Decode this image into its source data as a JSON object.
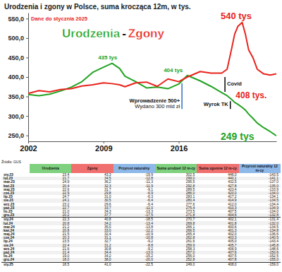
{
  "chart_data": {
    "type": "line",
    "title": "Urodzenia i zgony w Polsce, suma krocząca 12m, w tys.",
    "subtitle": "Dane do stycznia 2025",
    "x": [
      2002,
      2003,
      2004,
      2005,
      2006,
      2007,
      2008,
      2009,
      2009.8,
      2010.5,
      2011,
      2012,
      2013,
      2014,
      2015,
      2016,
      2016.8,
      2018,
      2019,
      2020,
      2020.5,
      2020.9,
      2021.2,
      2021.5,
      2021.9,
      2022.2,
      2022.5,
      2022.9,
      2023.3,
      2023.9,
      2024.5,
      2025.08
    ],
    "xlim": [
      2002,
      2025.08
    ],
    "xticks": [
      2002,
      2009,
      2016
    ],
    "ylim": [
      235,
      565
    ],
    "yticks": [
      {
        "value": 250,
        "label": "250,0"
      },
      {
        "value": 300,
        "label": "300,0"
      },
      {
        "value": 350,
        "label": "350,0"
      },
      {
        "value": 400,
        "label": "400,0"
      },
      {
        "value": 450,
        "label": "450,0"
      },
      {
        "value": 500,
        "label": "500,0"
      },
      {
        "value": 550,
        "label": "550,0"
      }
    ],
    "grid": false,
    "legend": "top",
    "legend_separator": "-",
    "series": [
      {
        "name": "Urodzenia",
        "color": "#22a322",
        "values": [
          355,
          352,
          356,
          364,
          374,
          388,
          412,
          425,
          435,
          422,
          402,
          388,
          372,
          374,
          370,
          382,
          404,
          390,
          376,
          360,
          352,
          343,
          335,
          330,
          322,
          315,
          305,
          294,
          282,
          270,
          260,
          249
        ]
      },
      {
        "name": "Zgony",
        "color": "#e8231c",
        "values": [
          358,
          365,
          362,
          368,
          370,
          377,
          380,
          385,
          383,
          380,
          375,
          385,
          387,
          376,
          395,
          388,
          400,
          414,
          410,
          410,
          420,
          470,
          510,
          530,
          540,
          510,
          470,
          450,
          420,
          408,
          405,
          408
        ]
      }
    ],
    "annotations": [
      {
        "text": "435 tys",
        "x": 2008.5,
        "y": 445,
        "color": "#22a322"
      },
      {
        "text": "404 tys",
        "x": 2014.6,
        "y": 412,
        "color": "#22a322"
      },
      {
        "text": "540 tys",
        "x": 2019.9,
        "y": 548,
        "color": "#e8231c"
      },
      {
        "text": "408 tys.",
        "x": 2021.3,
        "y": 345,
        "color": "#e8231c"
      },
      {
        "text": "249 tys",
        "x": 2019.9,
        "y": 238,
        "color": "#22a322"
      }
    ],
    "events": [
      {
        "texts": [
          "Wprowadzenie 500+",
          "Wydano 300 mld zł"
        ],
        "x": 2016.3,
        "y": [
          318,
          384
        ],
        "label_y": 335,
        "color": "#3a78c3"
      },
      {
        "texts": [
          "Covid"
        ],
        "x": 2020.3,
        "y": [
          362,
          400
        ],
        "label_y": 378,
        "color": "#111111"
      },
      {
        "texts": [
          "Wyrok TK"
        ],
        "x": 2020.8,
        "y": [
          318,
          338
        ],
        "label_y": 325,
        "color": "#111111"
      }
    ]
  },
  "table": {
    "source": "Źródło: GUS",
    "columns": [
      "Urodzenia",
      "Zgony",
      "Przyrost naturalny",
      "Suma urodzeń 12 m-cy",
      "Suma zgonów 12 m-cy",
      "Przyrost naturalny 12 m-cy"
    ],
    "rows": [
      [
        "sty.23",
        "23,4",
        "43,3",
        "-19,9",
        "302,5",
        "446,0",
        "-143,5"
      ],
      [
        "lut.23",
        "21,7",
        "34,5",
        "-12,8",
        "299,0",
        "440,1",
        "-141,1"
      ],
      [
        "mar.23",
        "24,9",
        "36,2",
        "-11,3",
        "295,5",
        "432,5",
        "-137,0"
      ],
      [
        "kwi.23",
        "20,4",
        "32,3",
        "-11,9",
        "292,8",
        "427,8",
        "-135,0"
      ],
      [
        "maj.23",
        "22,6",
        "31,7",
        "-9,1",
        "289,5",
        "423,4",
        "-133,9"
      ],
      [
        "cze.23",
        "22,9",
        "29,8",
        "-6,9",
        "286,0",
        "420,0",
        "-134,0"
      ],
      [
        "lip.23",
        "24,7",
        "31,0",
        "-6,3",
        "283,1",
        "417,2",
        "-134,1"
      ],
      [
        "sie.23",
        "24,1",
        "30,5",
        "-6,4",
        "280,4",
        "414,9",
        "-134,5"
      ],
      [
        "wrz.23",
        "23,2",
        "29,6",
        "-6,4",
        "277,6",
        "412,0",
        "-134,4"
      ],
      [
        "paź.23",
        "22,7",
        "33,7",
        "-11,0",
        "275,4",
        "410,3",
        "-134,9"
      ],
      [
        "lis.23",
        "21,0",
        "34,3",
        "-13,3",
        "273,5",
        "407,5",
        "-134,0"
      ],
      [
        "gru.23",
        "20,2",
        "37,7",
        "-17,5",
        "271,8",
        "404,6",
        "-132,8"
      ],
      [
        "sty.24",
        "22,3",
        "40,8",
        "-18,5",
        "270,7",
        "402,1",
        "-131,4"
      ],
      [
        "lut.24",
        "20,8",
        "34,2",
        "-13,4",
        "269,8",
        "401,8",
        "-132,0"
      ],
      [
        "mar.24",
        "21,2",
        "35,0",
        "-13,8",
        "266,1",
        "400,6",
        "-134,5"
      ],
      [
        "kwi.24",
        "20,8",
        "33,0",
        "-12,2",
        "266,5",
        "401,3",
        "-134,8"
      ],
      [
        "maj.24",
        "21,5",
        "32,4",
        "-10,9",
        "265,4",
        "402,0",
        "-136,6"
      ],
      [
        "cze.24",
        "20,3",
        "31,1",
        "-10,8",
        "262,8",
        "403,3",
        "-140,5"
      ],
      [
        "lip.24",
        "23,5",
        "32,7",
        "-9,2",
        "261,6",
        "405,0",
        "-143,4"
      ],
      [
        "sie.24",
        "22,4",
        "31,2",
        "-8,8",
        "259,9",
        "405,7",
        "-145,8"
      ],
      [
        "wrz.24",
        "21,6",
        "30,8",
        "-9,2",
        "258,3",
        "406,9",
        "-148,6"
      ],
      [
        "paź.24",
        "21,4",
        "34,4",
        "-13,0",
        "257,0",
        "407,6",
        "-150,6"
      ],
      [
        "lis.24",
        "19,0",
        "34,2",
        "-15,2",
        "255,0",
        "407,5",
        "-152,5"
      ],
      [
        "gru.24",
        "18,0",
        "38,0",
        "-20,0",
        "252,8",
        "407,8",
        "-155,0"
      ],
      [
        "sty.25",
        "18,5",
        "41,0",
        "-22,5",
        "249,0",
        "408,0",
        "-159,0"
      ]
    ]
  }
}
